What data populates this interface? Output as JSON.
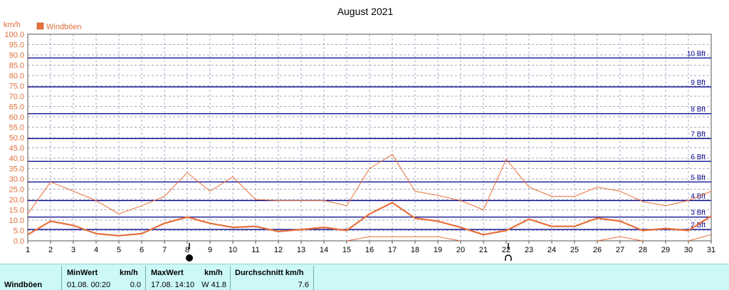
{
  "chart_data": {
    "type": "line",
    "title": "August 2021",
    "ylabel": "km/h",
    "legend": [
      "Windböen"
    ],
    "ylim": [
      0,
      100
    ],
    "yticks": [
      "0.0",
      "5.0",
      "10.0",
      "15.0",
      "20.0",
      "25.0",
      "30.0",
      "35.0",
      "40.0",
      "45.0",
      "50.0",
      "55.0",
      "60.0",
      "65.0",
      "70.0",
      "75.0",
      "80.0",
      "85.0",
      "90.0",
      "95.0",
      "100.0"
    ],
    "x": [
      "1",
      "2",
      "3",
      "4",
      "5",
      "6",
      "7",
      "8",
      "9",
      "10",
      "11",
      "12",
      "13",
      "14",
      "15",
      "16",
      "17",
      "18",
      "19",
      "20",
      "21",
      "22",
      "23",
      "24",
      "25",
      "26",
      "27",
      "28",
      "29",
      "30",
      "31"
    ],
    "series": [
      {
        "name": "Windböen",
        "role": "mean",
        "values": [
          3,
          9.5,
          7.5,
          3.5,
          2.5,
          3.5,
          8.5,
          11.5,
          8.5,
          6.5,
          7,
          4.5,
          5.5,
          6.5,
          5,
          13,
          18.5,
          11,
          9.5,
          6.5,
          3,
          5,
          10.5,
          7,
          7,
          11,
          9.5,
          5,
          6,
          5,
          12
        ]
      },
      {
        "role": "max",
        "values": [
          13,
          28.5,
          24,
          19.5,
          13,
          17,
          21.5,
          33,
          24,
          31,
          20,
          19.5,
          19.5,
          19.5,
          17,
          35,
          41.8,
          24,
          22,
          19.5,
          15,
          39.5,
          26,
          21.5,
          21.5,
          26,
          24,
          19,
          17,
          19.5,
          24
        ]
      },
      {
        "role": "min",
        "values": [
          null,
          null,
          null,
          null,
          null,
          null,
          null,
          null,
          null,
          null,
          null,
          null,
          null,
          null,
          0,
          2,
          2,
          2,
          2,
          0,
          null,
          null,
          null,
          null,
          null,
          0,
          2,
          0,
          null,
          0,
          3
        ]
      }
    ],
    "bft_lines": [
      {
        "label": "2 Bft",
        "value": 5.5
      },
      {
        "label": "3 Bft",
        "value": 11.5
      },
      {
        "label": "4 Bft",
        "value": 19.5
      },
      {
        "label": "5 Bft",
        "value": 28.5
      },
      {
        "label": "6 Bft",
        "value": 38.5
      },
      {
        "label": "7 Bft",
        "value": 49.5
      },
      {
        "label": "8 Bft",
        "value": 61.5
      },
      {
        "label": "9 Bft",
        "value": 74.5
      },
      {
        "label": "10 Bft",
        "value": 88.5
      }
    ],
    "moon_phases": [
      {
        "day": 8,
        "phase": "new-moon"
      },
      {
        "day": 22,
        "phase": "full-moon"
      }
    ],
    "colors": {
      "series": "#e8703a",
      "bft": "#00008b",
      "grid": "#8888aa",
      "legend_box": "#e8703a"
    },
    "grid": true
  },
  "stats": {
    "row_label": "Windböen",
    "min_header": "MinWert",
    "unit1": "km/h",
    "min_time": "01.08.  00:20",
    "min_value": "0.0",
    "max_header": "MaxWert",
    "unit2": "km/h",
    "max_time": "17.08.  14:10",
    "max_value": "W 41.8",
    "avg_header": "Durchschnitt km/h",
    "avg_value": "7.6"
  }
}
